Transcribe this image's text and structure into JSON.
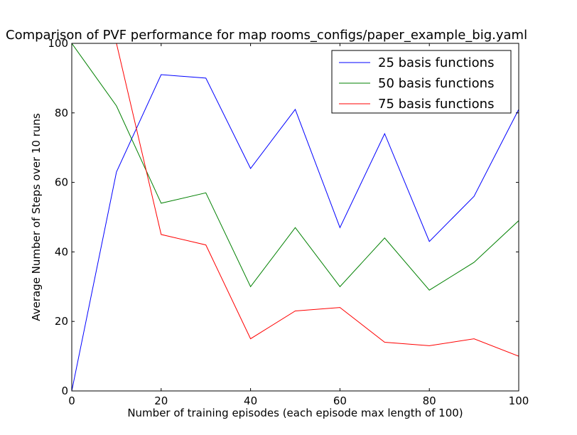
{
  "chart_data": {
    "type": "line",
    "title": "Comparison of PVF performance for map rooms_configs/paper_example_big.yaml",
    "xlabel": "Number of training episodes (each episode max length of 100)",
    "ylabel": "Average Number of Steps over 10 runs",
    "xlim": [
      0,
      100
    ],
    "ylim": [
      0,
      100
    ],
    "xticks": [
      "0",
      "20",
      "40",
      "60",
      "80",
      "100"
    ],
    "yticks": [
      "0",
      "20",
      "40",
      "60",
      "80",
      "100"
    ],
    "grid": false,
    "legend_position": "top-right",
    "x": [
      0,
      10,
      20,
      30,
      40,
      50,
      60,
      70,
      80,
      90,
      100
    ],
    "series": [
      {
        "name": "25 basis functions",
        "color": "#0000ff",
        "values": [
          0,
          63,
          91,
          90,
          64,
          81,
          47,
          74,
          43,
          56,
          81
        ]
      },
      {
        "name": "50 basis functions",
        "color": "#008000",
        "values": [
          100,
          82,
          54,
          57,
          30,
          47,
          30,
          44,
          29,
          37,
          49
        ]
      },
      {
        "name": "75 basis functions",
        "color": "#ff0000",
        "values": [
          100,
          100,
          45,
          42,
          15,
          23,
          24,
          14,
          13,
          15,
          10
        ]
      }
    ]
  }
}
